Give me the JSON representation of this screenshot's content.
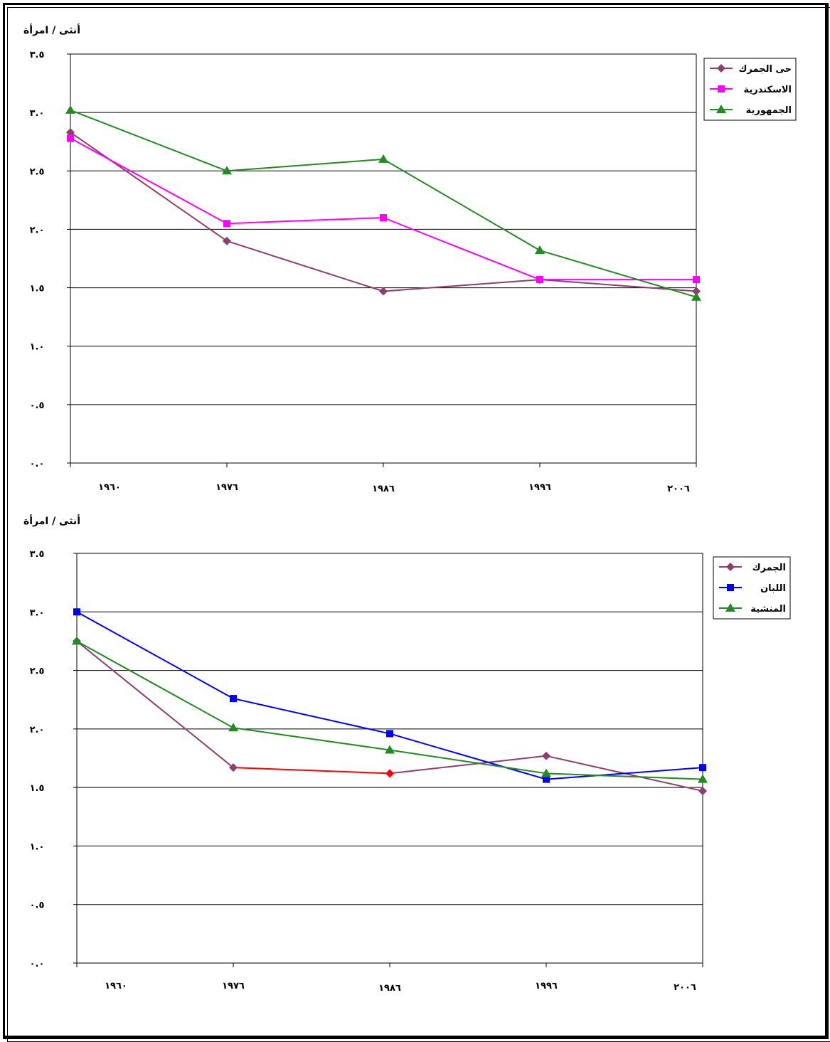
{
  "chart_data": [
    {
      "type": "line",
      "ylabel": "أنثى / امرأة",
      "x": [
        "١٩٦٠",
        "١٩٧٦",
        "١٩٨٦",
        "١٩٩٦",
        "٢٠٠٦"
      ],
      "yticks": [
        "٠.٠",
        "٠.٥",
        "١.٠",
        "١.٥",
        "٢.٠",
        "٢.٥",
        "٣.٠",
        "٣.٥"
      ],
      "ylim": [
        0,
        3.5
      ],
      "grid": true,
      "legend_position": "top-right",
      "series": [
        {
          "name": "حى الجمرك",
          "color": "#8E3E6E",
          "marker": "diamond",
          "values": [
            2.83,
            1.9,
            1.47,
            1.57,
            1.47
          ]
        },
        {
          "name": "الاسكندرية",
          "color": "#FF00FF",
          "marker": "square",
          "values": [
            2.78,
            2.05,
            2.1,
            1.57,
            1.57
          ]
        },
        {
          "name": "الجمهورية",
          "color": "#228B22",
          "marker": "triangle",
          "values": [
            3.02,
            2.5,
            2.6,
            1.82,
            1.42
          ]
        }
      ]
    },
    {
      "type": "line",
      "ylabel": "أنثى / امرأة",
      "x": [
        "١٩٦٠",
        "١٩٧٦",
        "١٩٨٦",
        "١٩٩٦",
        "٢٠٠٦"
      ],
      "yticks": [
        "٠.٠",
        "٠.٥",
        "١.٠",
        "١.٥",
        "٢.٠",
        "٢.٥",
        "٣.٠",
        "٣.٥"
      ],
      "ylim": [
        0,
        3.5
      ],
      "grid": true,
      "legend_position": "top-right",
      "series": [
        {
          "name": "الجمرك",
          "color": "#8E3E6E",
          "marker": "diamond",
          "values": [
            2.75,
            1.67,
            1.62,
            1.77,
            1.47
          ],
          "segment_colors": [
            "#8E3E6E",
            "#FF0000",
            "#8E3E6E",
            "#8E3E6E"
          ]
        },
        {
          "name": "اللبان",
          "color": "#0000FF",
          "marker": "square",
          "values": [
            3.0,
            2.26,
            1.96,
            1.57,
            1.67
          ]
        },
        {
          "name": "المنشية",
          "color": "#228B22",
          "marker": "triangle",
          "values": [
            2.75,
            2.01,
            1.82,
            1.62,
            1.57
          ]
        }
      ]
    }
  ]
}
